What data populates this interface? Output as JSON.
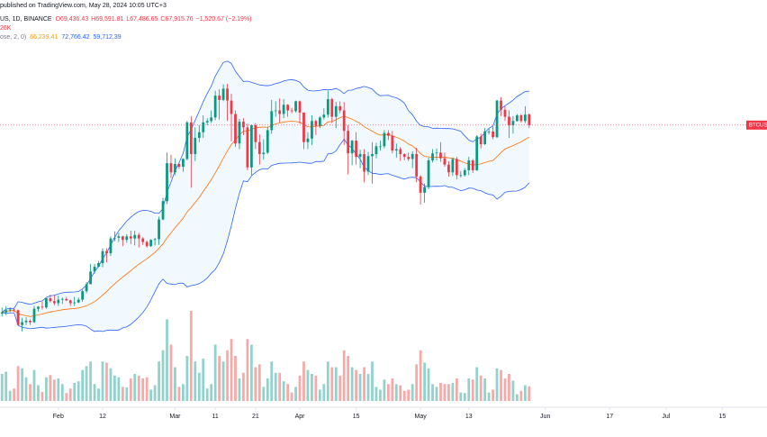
{
  "header": {
    "published": "published on TradingView.com, May 28, 2024 10:05 UTC+3",
    "symbol": "US, 1D, BINANCE",
    "ohlc": [
      "O69,436.43",
      "H69,591.81",
      "L67,486.65",
      "C67,915.76",
      "−1,520.67 (−2.19%)"
    ],
    "volume": "26K",
    "bb_label": "ose, 2, 0)",
    "bb_values": [
      "66,239.41",
      "72,766.42",
      "59,712.39"
    ]
  },
  "chart_data": {
    "type": "candlestick",
    "symbol_label": "BTCUS",
    "up_color": "#089981",
    "down_color": "#f23645",
    "volume_up_color": "#92d2cc",
    "volume_down_color": "#f7a9a7",
    "open": [
      41100,
      41300,
      41600,
      41700,
      41600,
      39500,
      39900,
      40100,
      39900,
      41800,
      42100,
      42000,
      43300,
      42900,
      42600,
      43100,
      43200,
      43000,
      42600,
      42700,
      43100,
      44300,
      45300,
      47100,
      47800,
      48300,
      50000,
      49700,
      51800,
      51900,
      52100,
      51600,
      52100,
      51800,
      52300,
      51800,
      51300,
      50700,
      51600,
      51700,
      54500,
      57100,
      62500,
      61200,
      62400,
      62000,
      63100,
      68300,
      63800,
      66100,
      66900,
      68300,
      68500,
      69000,
      72100,
      71500,
      73100,
      71400,
      69500,
      65300,
      68400,
      67600,
      61900,
      67900,
      65500,
      63800,
      64000,
      67200,
      69900,
      70000,
      69500,
      70800,
      70000,
      69900,
      71300,
      69700,
      65500,
      66000,
      68500,
      67800,
      69000,
      69400,
      71600,
      69100,
      70600,
      70000,
      67100,
      63900,
      65700,
      63400,
      63800,
      61300,
      63500,
      63800,
      64900,
      64900,
      66800,
      66400,
      64300,
      64500,
      63800,
      63400,
      63100,
      63800,
      60600,
      58300,
      59100,
      62900,
      63900,
      64000,
      63200,
      62300,
      61200,
      63100,
      60800,
      60800,
      61500,
      62900,
      61500,
      66300,
      65200,
      67000,
      67000,
      66200,
      71400,
      70100,
      69100,
      67900,
      68500,
      69300,
      68500,
      69436.43
    ],
    "high": [
      42000,
      42200,
      42000,
      41900,
      41700,
      40500,
      40600,
      40300,
      42200,
      42200,
      42800,
      43300,
      43800,
      43700,
      43700,
      43400,
      43500,
      43100,
      43500,
      43400,
      44500,
      45600,
      48200,
      48200,
      48600,
      50400,
      50400,
      52100,
      52800,
      52600,
      52200,
      52400,
      52900,
      52900,
      52600,
      52000,
      51500,
      51700,
      51900,
      54900,
      57600,
      64000,
      63700,
      63200,
      62500,
      63200,
      68500,
      69200,
      67600,
      67900,
      69300,
      68900,
      70000,
      72800,
      73000,
      73700,
      73800,
      72400,
      70000,
      68800,
      68900,
      68100,
      68000,
      68200,
      66600,
      65900,
      67600,
      71500,
      71300,
      71700,
      71600,
      70900,
      70400,
      71400,
      71400,
      69700,
      66900,
      69300,
      68700,
      69200,
      70300,
      72800,
      71800,
      71200,
      71300,
      71200,
      67900,
      65800,
      66900,
      64400,
      64500,
      64100,
      65500,
      65400,
      65700,
      67200,
      67200,
      67100,
      65300,
      64800,
      63900,
      64000,
      64200,
      64700,
      60800,
      59600,
      63300,
      64500,
      64600,
      65500,
      64000,
      62800,
      63300,
      63400,
      61400,
      61800,
      63400,
      63100,
      66500,
      66700,
      67500,
      67400,
      67700,
      71500,
      71900,
      70600,
      70000,
      69200,
      69500,
      69500,
      70600,
      69591.81
    ],
    "low": [
      40700,
      40900,
      41300,
      41400,
      39400,
      38600,
      39500,
      39500,
      39800,
      41400,
      41700,
      41800,
      42700,
      42300,
      42200,
      42500,
      42900,
      42200,
      42200,
      42600,
      42800,
      44000,
      45300,
      46800,
      47700,
      47700,
      48400,
      49300,
      51400,
      51300,
      50700,
      51200,
      51000,
      50800,
      50500,
      50900,
      50500,
      50600,
      50800,
      50900,
      54400,
      56700,
      60400,
      60800,
      61700,
      61300,
      62900,
      59000,
      62800,
      65500,
      66100,
      67900,
      68200,
      68600,
      68700,
      71300,
      68500,
      65600,
      64800,
      64500,
      66500,
      61500,
      60800,
      64500,
      62300,
      63000,
      63800,
      66700,
      69100,
      68300,
      68900,
      69100,
      69600,
      69700,
      68100,
      64500,
      64500,
      65100,
      66500,
      67500,
      68700,
      69000,
      68200,
      67500,
      69600,
      65100,
      60900,
      62200,
      62300,
      61800,
      59800,
      60800,
      59600,
      63200,
      64300,
      64600,
      65800,
      63900,
      63300,
      62800,
      62900,
      62800,
      61800,
      59800,
      56600,
      56900,
      58800,
      62600,
      62900,
      62700,
      62000,
      60600,
      60700,
      60200,
      60500,
      60600,
      60800,
      61100,
      61400,
      64600,
      65100,
      66600,
      65900,
      66100,
      69200,
      68500,
      66100,
      66700,
      68400,
      68300,
      68200,
      67486.65
    ],
    "close": [
      41300,
      41600,
      41700,
      41600,
      39500,
      39900,
      40100,
      39900,
      41800,
      42100,
      42000,
      43300,
      42900,
      42600,
      43100,
      43200,
      43000,
      42600,
      42700,
      43100,
      44300,
      45300,
      47100,
      47800,
      48300,
      50000,
      49700,
      51800,
      51900,
      52100,
      51600,
      52100,
      51800,
      52300,
      51800,
      51300,
      50700,
      51600,
      51700,
      54500,
      57100,
      62500,
      61200,
      62400,
      62000,
      63100,
      68300,
      63800,
      66100,
      66900,
      68300,
      68500,
      69000,
      72100,
      71500,
      73100,
      71400,
      69500,
      65300,
      68400,
      67600,
      61900,
      67900,
      65500,
      63800,
      64000,
      67200,
      69900,
      70000,
      69500,
      70800,
      70000,
      69900,
      71300,
      69700,
      65500,
      66000,
      68500,
      67800,
      69000,
      69400,
      71600,
      69100,
      70600,
      70000,
      67100,
      63900,
      65700,
      63400,
      63800,
      61300,
      63500,
      63800,
      64900,
      64900,
      66800,
      66400,
      64300,
      64500,
      63800,
      63400,
      63100,
      63800,
      60600,
      58300,
      59100,
      62900,
      63900,
      64000,
      63200,
      62300,
      61200,
      63100,
      60800,
      60800,
      61500,
      62900,
      61500,
      66300,
      65200,
      67000,
      67000,
      66200,
      71400,
      70100,
      69100,
      67900,
      68500,
      69300,
      68500,
      69400,
      67915.76
    ],
    "volume": [
      48000,
      52000,
      18000,
      22000,
      62000,
      58000,
      42000,
      30000,
      55000,
      28000,
      16000,
      42000,
      46000,
      38000,
      40000,
      30000,
      14000,
      22000,
      32000,
      35000,
      55000,
      62000,
      70000,
      30000,
      22000,
      70000,
      68000,
      58000,
      45000,
      42000,
      25000,
      24000,
      40000,
      48000,
      45000,
      40000,
      42000,
      20000,
      28000,
      70000,
      90000,
      145000,
      100000,
      60000,
      25000,
      30000,
      80000,
      160000,
      70000,
      50000,
      75000,
      22000,
      30000,
      100000,
      80000,
      70000,
      90000,
      110000,
      80000,
      40000,
      50000,
      110000,
      100000,
      60000,
      65000,
      25000,
      40000,
      70000,
      50000,
      50000,
      35000,
      30000,
      15000,
      25000,
      45000,
      70000,
      55000,
      48000,
      45000,
      20000,
      30000,
      70000,
      60000,
      60000,
      45000,
      90000,
      80000,
      60000,
      55000,
      48000,
      60000,
      48000,
      70000,
      25000,
      20000,
      38000,
      30000,
      40000,
      30000,
      28000,
      18000,
      20000,
      30000,
      65000,
      90000,
      68000,
      58000,
      30000,
      25000,
      32000,
      30000,
      30000,
      32000,
      40000,
      15000,
      14000,
      40000,
      38000,
      60000,
      45000,
      40000,
      15000,
      20000,
      58000,
      55000,
      40000,
      48000,
      36000,
      12000,
      18000,
      28000,
      26000
    ],
    "xlim": [
      -0.5,
      190.1
    ],
    "xticks": [
      {
        "value": 14,
        "label": "Feb"
      },
      {
        "value": 25,
        "label": "12"
      },
      {
        "value": 43,
        "label": "Mar"
      },
      {
        "value": 53,
        "label": "11"
      },
      {
        "value": 63,
        "label": "21"
      },
      {
        "value": 74,
        "label": "Apr"
      },
      {
        "value": 88,
        "label": "15"
      },
      {
        "value": 104,
        "label": "May"
      },
      {
        "value": 116,
        "label": "13"
      },
      {
        "value": 135,
        "label": "Jun"
      },
      {
        "value": 151,
        "label": "17"
      },
      {
        "value": 165,
        "label": "Jul"
      },
      {
        "value": 179,
        "label": "15"
      }
    ],
    "ylim": [
      28700,
      85700
    ],
    "volume_lim": [
      0,
      712000
    ]
  }
}
